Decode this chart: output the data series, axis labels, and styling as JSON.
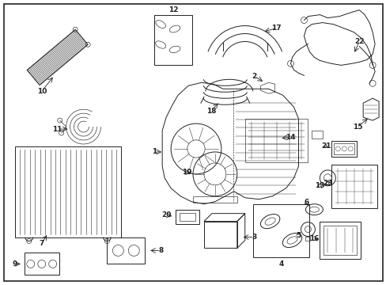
{
  "bg_color": "#ffffff",
  "line_color": "#222222",
  "border_color": "#000000",
  "figsize": [
    4.89,
    3.6
  ],
  "dpi": 100
}
